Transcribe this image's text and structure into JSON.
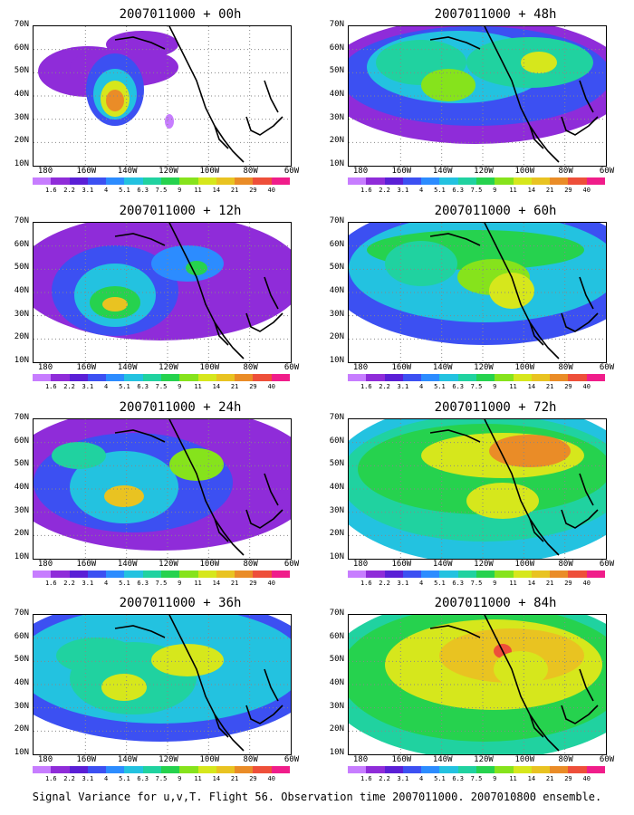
{
  "panels": [
    {
      "title": "2007011000 + 00h"
    },
    {
      "title": "2007011000 + 48h"
    },
    {
      "title": "2007011000 + 12h"
    },
    {
      "title": "2007011000 + 60h"
    },
    {
      "title": "2007011000 + 24h"
    },
    {
      "title": "2007011000 + 72h"
    },
    {
      "title": "2007011000 + 36h"
    },
    {
      "title": "2007011000 + 84h"
    }
  ],
  "lat_labels": [
    "70N",
    "60N",
    "50N",
    "40N",
    "30N",
    "20N",
    "10N"
  ],
  "lon_labels": [
    "180",
    "160W",
    "140W",
    "120W",
    "100W",
    "80W",
    "60W"
  ],
  "colorbar": {
    "labels": [
      "1.6",
      "2.2",
      "3.1",
      "4",
      "5.1",
      "6.3",
      "7.5",
      "9",
      "11",
      "14",
      "21",
      "29",
      "40"
    ],
    "colors": [
      "#c77dff",
      "#8f2cd9",
      "#5a1fd6",
      "#3c50f2",
      "#2c8cff",
      "#23c2e0",
      "#20d2a0",
      "#26d24e",
      "#86e31c",
      "#d6e71c",
      "#e9c321",
      "#ea8c27",
      "#ee4f3a",
      "#f01d8a"
    ]
  },
  "caption": "Signal Variance for u,v,T. Flight 56. Observation time 2007011000. 2007010800 ensemble."
}
